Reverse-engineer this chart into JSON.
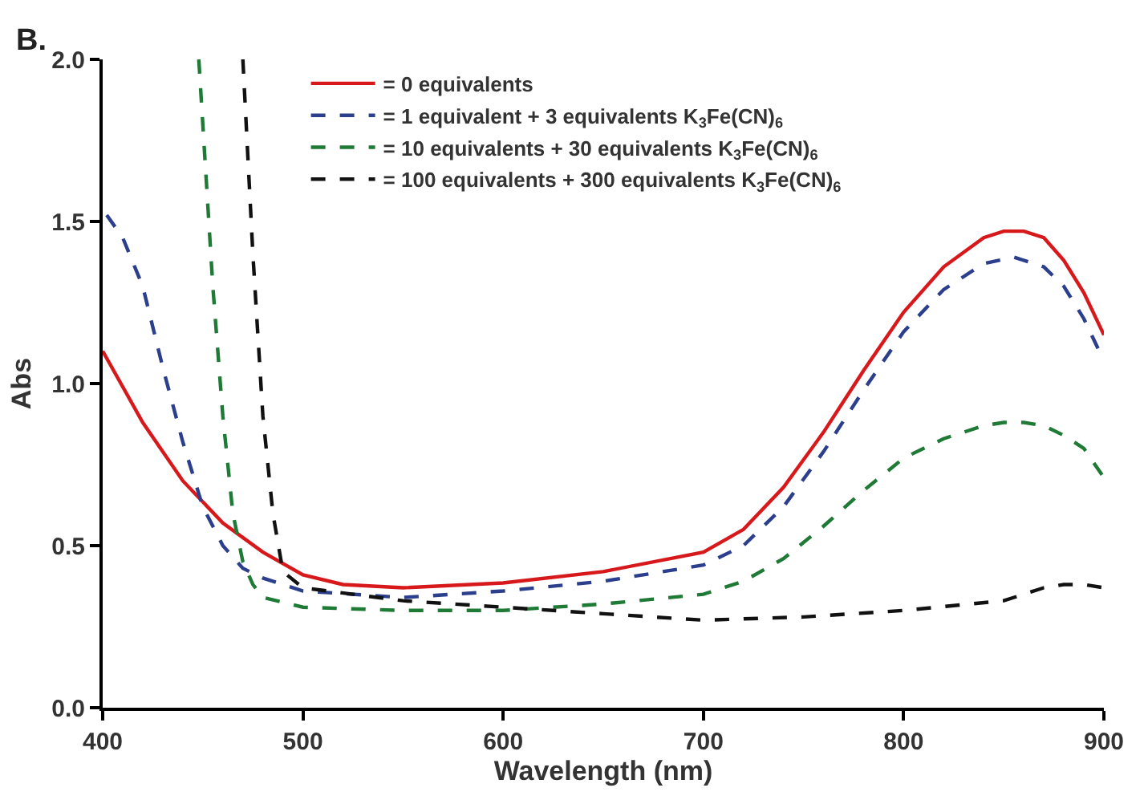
{
  "chart_data": {
    "type": "line",
    "xlabel": "Wavelength (nm)",
    "ylabel": "Abs",
    "annotations": [
      "B."
    ],
    "xlim": [
      400,
      900
    ],
    "xticks": [
      400,
      500,
      600,
      700,
      800,
      900
    ],
    "ylim": [
      0,
      2
    ],
    "yticks": [
      {
        "value": 0,
        "label": "0.0"
      },
      {
        "value": 0.5,
        "label": "0.5"
      },
      {
        "value": 1,
        "label": "1.0"
      },
      {
        "value": 1.5,
        "label": "1.5"
      },
      {
        "value": 2,
        "label": "2.0"
      }
    ],
    "legend": "top",
    "marker": "none",
    "series": [
      {
        "name": "= 0 equivalents",
        "color": "#d7191c",
        "line_style": "solid",
        "x": [
          400,
          420,
          440,
          460,
          480,
          500,
          520,
          550,
          600,
          650,
          700,
          720,
          740,
          760,
          780,
          800,
          820,
          840,
          850,
          860,
          870,
          880,
          890,
          900
        ],
        "values": [
          1.1,
          0.88,
          0.7,
          0.57,
          0.48,
          0.41,
          0.38,
          0.37,
          0.385,
          0.42,
          0.48,
          0.55,
          0.68,
          0.85,
          1.04,
          1.22,
          1.36,
          1.45,
          1.47,
          1.47,
          1.45,
          1.38,
          1.28,
          1.15
        ]
      },
      {
        "name": "= 1 equivalent + 3 equivalents K$_{3}$Fe(CN)$_{6}$",
        "color": "#2b3f8c",
        "line_style": "dashed",
        "x": [
          402,
          410,
          420,
          430,
          440,
          450,
          460,
          470,
          480,
          500,
          550,
          600,
          650,
          700,
          720,
          740,
          760,
          780,
          800,
          820,
          840,
          855,
          870,
          880,
          890,
          900
        ],
        "values": [
          1.52,
          1.45,
          1.3,
          1.05,
          0.82,
          0.62,
          0.5,
          0.43,
          0.4,
          0.36,
          0.34,
          0.36,
          0.39,
          0.44,
          0.5,
          0.62,
          0.79,
          0.98,
          1.16,
          1.29,
          1.37,
          1.39,
          1.36,
          1.3,
          1.2,
          1.07
        ]
      },
      {
        "name": "= 10 equivalents + 30 equivalents K$_{3}$Fe(CN)$_{6}$",
        "color": "#1e7a35",
        "line_style": "dashed",
        "x": [
          448,
          455,
          460,
          465,
          470,
          475,
          480,
          500,
          550,
          600,
          650,
          700,
          720,
          740,
          760,
          780,
          800,
          820,
          840,
          850,
          860,
          870,
          880,
          890,
          900
        ],
        "values": [
          2.0,
          1.3,
          0.9,
          0.6,
          0.45,
          0.38,
          0.34,
          0.31,
          0.3,
          0.3,
          0.32,
          0.35,
          0.39,
          0.46,
          0.56,
          0.67,
          0.77,
          0.83,
          0.87,
          0.88,
          0.88,
          0.87,
          0.84,
          0.8,
          0.71
        ]
      },
      {
        "name": "= 100 equivalents + 300 equivalents K$_{3}$Fe(CN)$_{6}$",
        "color": "#111111",
        "line_style": "dashed",
        "x": [
          470,
          475,
          480,
          485,
          490,
          500,
          550,
          600,
          650,
          700,
          750,
          800,
          850,
          870,
          880,
          890,
          900
        ],
        "values": [
          2.0,
          1.4,
          0.9,
          0.6,
          0.42,
          0.37,
          0.33,
          0.31,
          0.29,
          0.27,
          0.28,
          0.3,
          0.33,
          0.37,
          0.38,
          0.38,
          0.37
        ]
      }
    ]
  }
}
